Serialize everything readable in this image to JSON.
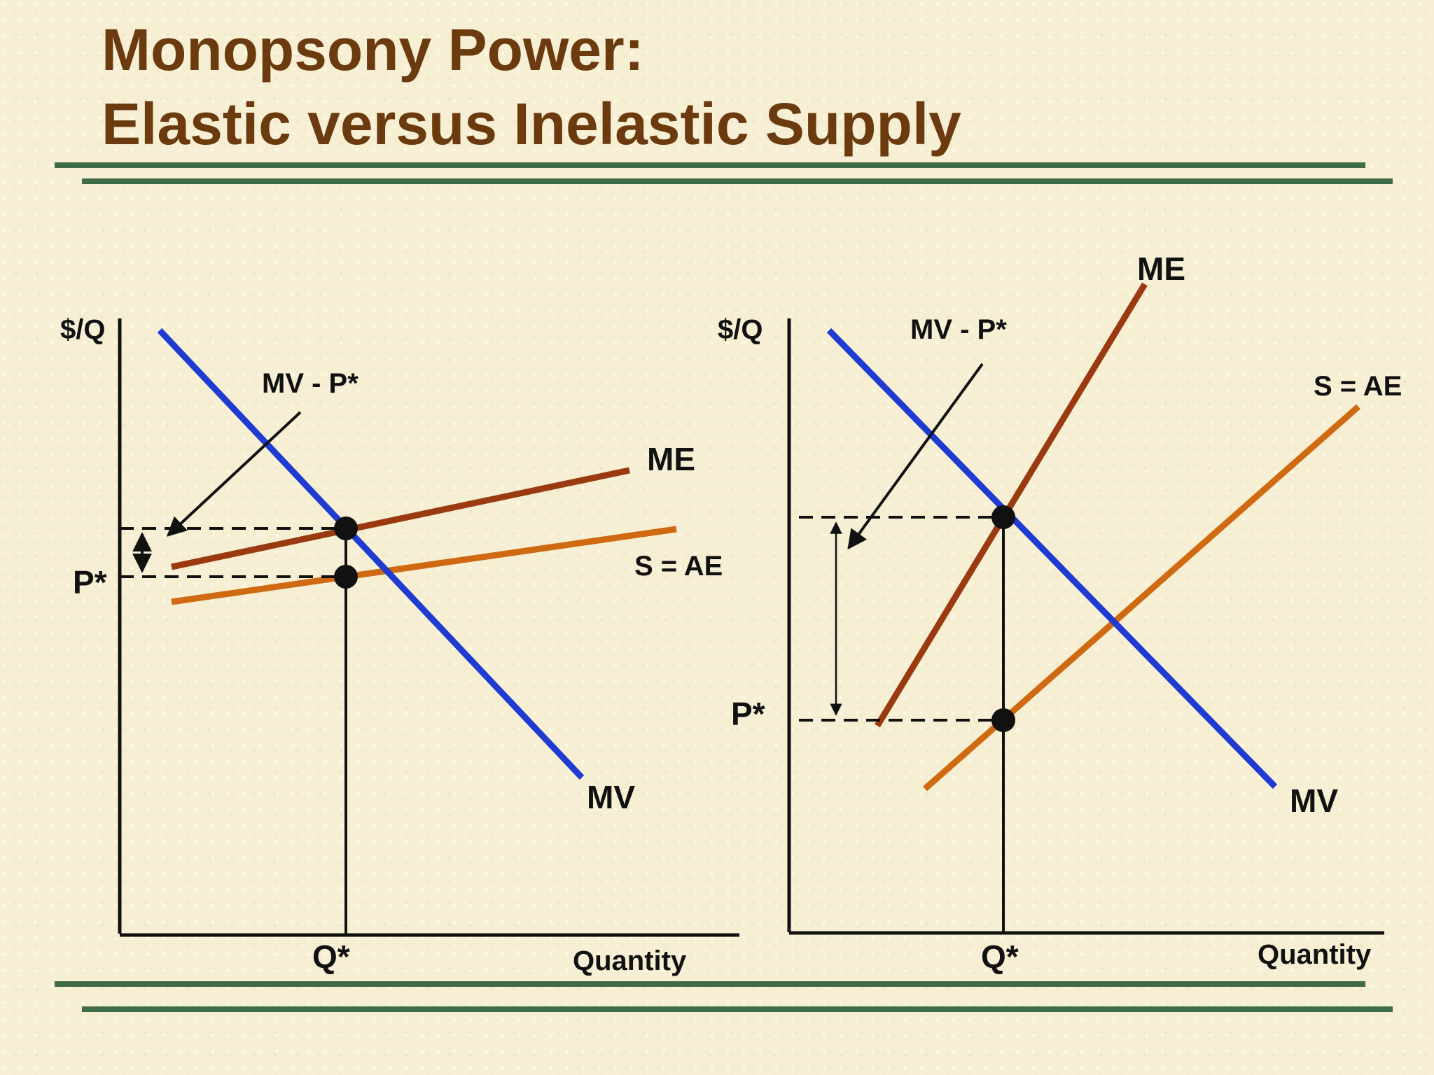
{
  "title": {
    "line1": "Monopsony Power:",
    "line2": "Elastic versus Inelastic Supply"
  },
  "colors": {
    "title": "#6b3a0e",
    "rules": "#3f6b47",
    "mv_curve": "#1f3bd1",
    "me_curve": "#9b3a10",
    "supply_curve": "#d06a12",
    "background": "#f7efd4"
  },
  "left_panel": {
    "y_axis_label": "$/Q",
    "x_axis_label": "Quantity",
    "q_star_label": "Q*",
    "p_star_label": "P*",
    "mv_label": "MV",
    "me_label": "ME",
    "supply_label": "S = AE",
    "gap_label": "MV - P*"
  },
  "right_panel": {
    "y_axis_label": "$/Q",
    "x_axis_label": "Quantity",
    "q_star_label": "Q*",
    "p_star_label": "P*",
    "mv_label": "MV",
    "me_label": "ME",
    "supply_label": "S = AE",
    "gap_label": "MV - P*"
  }
}
